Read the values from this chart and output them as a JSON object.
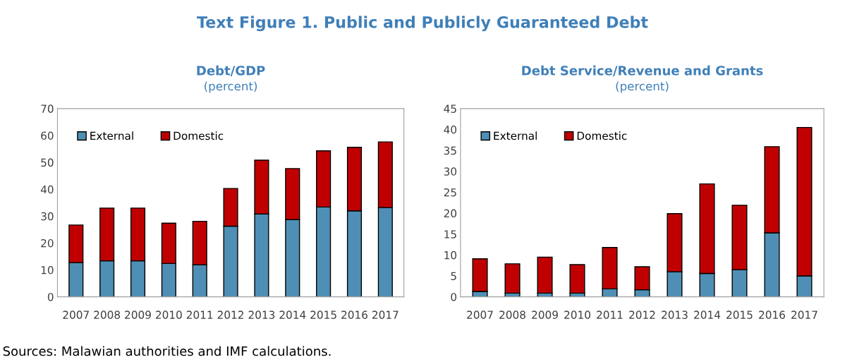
{
  "chart_data": [
    {
      "type": "bar",
      "stacked": true,
      "title": "Debt/GDP",
      "subtitle": "(percent)",
      "categories": [
        "2007",
        "2008",
        "2009",
        "2010",
        "2011",
        "2012",
        "2013",
        "2014",
        "2015",
        "2016",
        "2017"
      ],
      "series": [
        {
          "name": "External",
          "color": "#4f8fb5",
          "values": [
            12.7,
            13.4,
            13.4,
            12.4,
            11.9,
            26.3,
            30.8,
            28.7,
            33.4,
            32.0,
            33.2
          ]
        },
        {
          "name": "Domestic",
          "color": "#c00000",
          "values": [
            14.0,
            19.6,
            19.6,
            15.0,
            16.2,
            14.0,
            20.0,
            19.0,
            20.9,
            23.6,
            24.4
          ]
        }
      ],
      "ylim": [
        0,
        70
      ],
      "yticks": [
        0,
        10,
        20,
        30,
        40,
        50,
        60,
        70
      ],
      "grid": false,
      "legend": "top left",
      "annotations": [
        "Text Figure 1. Public and Publicly Guaranteed Debt",
        "Sources: Malawian authorities and IMF calculations."
      ]
    },
    {
      "type": "bar",
      "stacked": true,
      "title": "Debt Service/Revenue and Grants",
      "subtitle": "(percent)",
      "categories": [
        "2007",
        "2008",
        "2009",
        "2010",
        "2011",
        "2012",
        "2013",
        "2014",
        "2015",
        "2016",
        "2017"
      ],
      "series": [
        {
          "name": "External",
          "color": "#4f8fb5",
          "values": [
            1.3,
            0.9,
            0.9,
            0.9,
            1.9,
            1.7,
            6.0,
            5.6,
            6.5,
            15.3,
            5.0
          ]
        },
        {
          "name": "Domestic",
          "color": "#c00000",
          "values": [
            7.8,
            7.0,
            8.6,
            6.8,
            9.9,
            5.5,
            13.9,
            21.4,
            15.4,
            20.6,
            35.5
          ]
        }
      ],
      "ylim": [
        0,
        45
      ],
      "yticks": [
        0,
        5,
        10,
        15,
        20,
        25,
        30,
        35,
        40,
        45
      ],
      "grid": false,
      "legend": "top left"
    }
  ]
}
